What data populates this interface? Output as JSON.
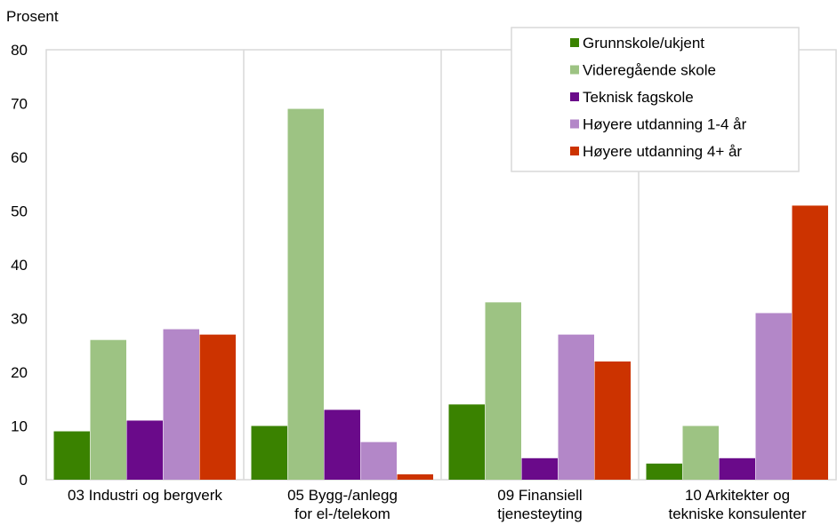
{
  "chart_data": {
    "type": "bar",
    "ylabel": "Prosent",
    "ylim": [
      0,
      80
    ],
    "yticks": [
      0,
      10,
      20,
      30,
      40,
      50,
      60,
      70,
      80
    ],
    "grid": "vertical separators between categories",
    "legend_position": "top-right",
    "categories": [
      [
        "03 Industri og bergverk"
      ],
      [
        "05 Bygg-/anlegg",
        "for el-/telekom"
      ],
      [
        "09 Finansiell",
        "tjenesteyting"
      ],
      [
        "10 Arkitekter og",
        "tekniske konsulenter"
      ]
    ],
    "series": [
      {
        "name": "Grunnskole/ukjent",
        "color": "#3a8200",
        "values": [
          9,
          10,
          14,
          3
        ]
      },
      {
        "name": "Videregående skole",
        "color": "#9dc383",
        "values": [
          26,
          69,
          33,
          10
        ]
      },
      {
        "name": "Teknisk fagskole",
        "color": "#6a0a8a",
        "values": [
          11,
          13,
          4,
          4
        ]
      },
      {
        "name": "Høyere utdanning 1-4 år",
        "color": "#b387c8",
        "values": [
          28,
          7,
          27,
          31
        ]
      },
      {
        "name": "Høyere utdanning 4+ år",
        "color": "#cc3300",
        "values": [
          27,
          1,
          22,
          51
        ]
      }
    ]
  }
}
